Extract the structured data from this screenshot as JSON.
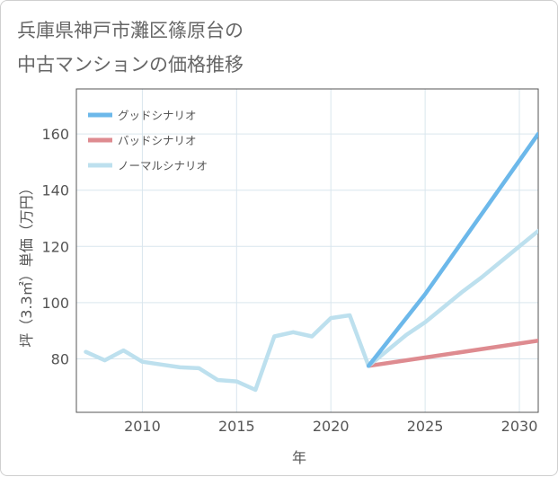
{
  "title_line1": "兵庫県神戸市灘区篠原台の",
  "title_line2": "中古マンションの価格推移",
  "chart_data": {
    "type": "line",
    "title": "兵庫県神戸市灘区篠原台の中古マンションの価格推移",
    "xlabel": "年",
    "ylabel": "坪（3.3㎡）単価（万円）",
    "xlim": [
      2006.5,
      2031
    ],
    "ylim": [
      61,
      176
    ],
    "xticks": [
      2010,
      2015,
      2020,
      2025,
      2030
    ],
    "yticks": [
      80,
      100,
      120,
      140,
      160
    ],
    "grid": true,
    "legend_position": "top-left",
    "series": [
      {
        "name": "グッドシナリオ",
        "color": "#6cb8ea",
        "x": [
          2022,
          2025,
          2031
        ],
        "y": [
          77.5,
          103,
          160
        ]
      },
      {
        "name": "バッドシナリオ",
        "color": "#de8b90",
        "x": [
          2022,
          2025,
          2028,
          2031
        ],
        "y": [
          77.5,
          80.5,
          83.5,
          86.5
        ]
      },
      {
        "name": "ノーマルシナリオ",
        "color": "#bde0ee",
        "x": [
          2007,
          2008,
          2009,
          2010,
          2011,
          2012,
          2013,
          2014,
          2015,
          2016,
          2017,
          2018,
          2019,
          2020,
          2021,
          2022,
          2023,
          2024,
          2025,
          2026,
          2027,
          2028,
          2029,
          2030,
          2031
        ],
        "y": [
          82.5,
          79.5,
          83,
          79,
          78,
          77,
          76.7,
          72.5,
          72,
          69,
          88,
          89.5,
          88,
          94.5,
          95.5,
          77.5,
          83,
          88.5,
          93,
          98.5,
          104,
          109,
          114.5,
          120,
          125.5
        ]
      }
    ]
  }
}
